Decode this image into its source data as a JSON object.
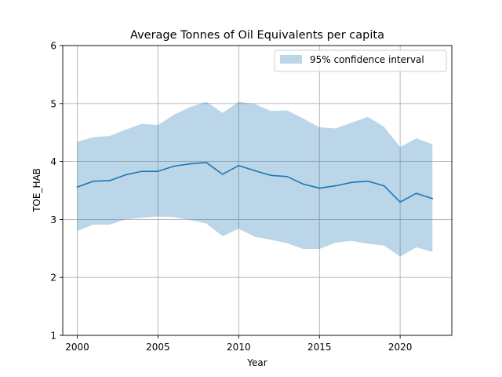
{
  "chart_data": {
    "type": "line",
    "title": "Average Tonnes of Oil Equivalents per capita",
    "xlabel": "Year",
    "ylabel": "TOE_HAB",
    "xlim": [
      1999.1,
      2023.2
    ],
    "ylim": [
      1,
      6
    ],
    "x_ticks": [
      2000,
      2005,
      2010,
      2015,
      2020
    ],
    "y_ticks": [
      1,
      2,
      3,
      4,
      5,
      6
    ],
    "grid": true,
    "legend_position": "top-right",
    "x": [
      2000,
      2001,
      2002,
      2003,
      2004,
      2005,
      2006,
      2007,
      2008,
      2009,
      2010,
      2011,
      2012,
      2013,
      2014,
      2015,
      2016,
      2017,
      2018,
      2019,
      2020,
      2021,
      2022
    ],
    "series": [
      {
        "values": [
          3.56,
          3.66,
          3.67,
          3.77,
          3.83,
          3.83,
          3.92,
          3.96,
          3.98,
          3.78,
          3.93,
          3.84,
          3.76,
          3.74,
          3.61,
          3.54,
          3.58,
          3.64,
          3.66,
          3.58,
          3.3,
          3.45,
          3.36
        ],
        "color": "#1f77b4"
      }
    ],
    "band": {
      "name": "95% confidence interval",
      "lower": [
        2.8,
        2.91,
        2.91,
        3.0,
        3.03,
        3.05,
        3.04,
        2.99,
        2.93,
        2.71,
        2.84,
        2.7,
        2.65,
        2.59,
        2.49,
        2.49,
        2.6,
        2.63,
        2.58,
        2.55,
        2.36,
        2.52,
        2.44
      ],
      "upper": [
        4.34,
        4.42,
        4.44,
        4.55,
        4.65,
        4.63,
        4.81,
        4.94,
        5.03,
        4.84,
        5.03,
        4.99,
        4.87,
        4.88,
        4.74,
        4.59,
        4.57,
        4.67,
        4.77,
        4.6,
        4.25,
        4.4,
        4.3
      ],
      "color": "#1f77b4",
      "opacity": 0.3
    }
  }
}
